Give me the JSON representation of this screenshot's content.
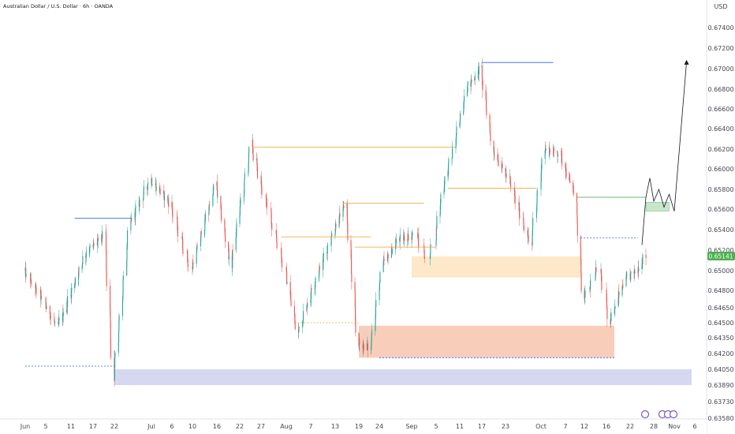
{
  "header": {
    "title": "Australian Dollar / U.S. Dollar · 6h · OANDA",
    "currency": "USD"
  },
  "chart_data": {
    "type": "candlestick",
    "symbol": "AUD/USD",
    "timeframe": "6h",
    "broker": "OANDA",
    "y_axis": {
      "ticks": [
        "0.67400",
        "0.67200",
        "0.67000",
        "0.66800",
        "0.66600",
        "0.66400",
        "0.66200",
        "0.66000",
        "0.65800",
        "0.65600",
        "0.65400",
        "0.65200",
        "0.65000",
        "0.64800",
        "0.64650",
        "0.64500",
        "0.64350",
        "0.64200",
        "0.64050",
        "0.63890",
        "0.63730",
        "0.63580"
      ],
      "last_price": "0.65141"
    },
    "x_axis": {
      "ticks": [
        "Jun",
        "5",
        "11",
        "17",
        "22",
        "Jul",
        "6",
        "10",
        "16",
        "22",
        "27",
        "Aug",
        "7",
        "13",
        "19",
        "24",
        "Sep",
        "5",
        "11",
        "17",
        "23",
        "Oct",
        "7",
        "12",
        "16",
        "22",
        "28",
        "Nov",
        "6"
      ]
    },
    "colors": {
      "up": "#26a69a",
      "down": "#ef5350",
      "supply_zone": "#fde7c4",
      "demand_zone": "#f7c9b3",
      "support_band": "#d1d4f1",
      "target_zone": "#c8e6c9",
      "level_blue": "#2962ff",
      "level_orange": "#f0a030",
      "level_green": "#43a047",
      "last_price_bg": "#4caf50"
    },
    "anchors": [
      {
        "date": "2024-06-01",
        "price": 0.65
      },
      {
        "date": "2024-06-08",
        "price": 0.6445
      },
      {
        "date": "2024-06-15",
        "price": 0.6515
      },
      {
        "date": "2024-06-20",
        "price": 0.6535
      },
      {
        "date": "2024-06-22",
        "price": 0.6395
      },
      {
        "date": "2024-06-26",
        "price": 0.6545
      },
      {
        "date": "2024-07-01",
        "price": 0.659
      },
      {
        "date": "2024-07-06",
        "price": 0.6565
      },
      {
        "date": "2024-07-10",
        "price": 0.65
      },
      {
        "date": "2024-07-16",
        "price": 0.6585
      },
      {
        "date": "2024-07-20",
        "price": 0.6505
      },
      {
        "date": "2024-07-25",
        "price": 0.6625
      },
      {
        "date": "2024-07-31",
        "price": 0.652
      },
      {
        "date": "2024-08-04",
        "price": 0.644
      },
      {
        "date": "2024-08-08",
        "price": 0.6485
      },
      {
        "date": "2024-08-13",
        "price": 0.654
      },
      {
        "date": "2024-08-16",
        "price": 0.6565
      },
      {
        "date": "2024-08-19",
        "price": 0.643
      },
      {
        "date": "2024-08-22",
        "price": 0.6425
      },
      {
        "date": "2024-08-25",
        "price": 0.6505
      },
      {
        "date": "2024-08-29",
        "price": 0.653
      },
      {
        "date": "2024-09-02",
        "price": 0.6535
      },
      {
        "date": "2024-09-04",
        "price": 0.651
      },
      {
        "date": "2024-09-07",
        "price": 0.658
      },
      {
        "date": "2024-09-10",
        "price": 0.6625
      },
      {
        "date": "2024-09-13",
        "price": 0.668
      },
      {
        "date": "2024-09-17",
        "price": 0.67
      },
      {
        "date": "2024-09-20",
        "price": 0.662
      },
      {
        "date": "2024-09-24",
        "price": 0.659
      },
      {
        "date": "2024-09-29",
        "price": 0.6525
      },
      {
        "date": "2024-10-02",
        "price": 0.662
      },
      {
        "date": "2024-10-06",
        "price": 0.6615
      },
      {
        "date": "2024-10-10",
        "price": 0.657
      },
      {
        "date": "2024-10-12",
        "price": 0.647
      },
      {
        "date": "2024-10-15",
        "price": 0.6505
      },
      {
        "date": "2024-10-17",
        "price": 0.645
      },
      {
        "date": "2024-10-21",
        "price": 0.649
      },
      {
        "date": "2024-10-24",
        "price": 0.65
      },
      {
        "date": "2024-10-26",
        "price": 0.6514
      }
    ],
    "zones": [
      {
        "name": "supply-zone",
        "from": "2024-09-01",
        "to": "2024-10-11",
        "top": 0.6514,
        "bottom": 0.6493
      },
      {
        "name": "demand-zone",
        "from": "2024-08-19",
        "to": "2024-10-18",
        "top": 0.6447,
        "bottom": 0.6416
      },
      {
        "name": "support-band",
        "from": "2024-06-22",
        "to": "2024-11-08",
        "top": 0.6405,
        "bottom": 0.6389
      },
      {
        "name": "target-zone",
        "from": "2024-10-26",
        "to": "2024-10-31",
        "top": 0.6567,
        "bottom": 0.6558
      }
    ],
    "levels": [
      {
        "name": "level-june-high",
        "color": "level_blue",
        "from": "2024-06-12",
        "to": "2024-06-26",
        "price": 0.6551
      },
      {
        "name": "level-july-high",
        "color": "level_orange",
        "from": "2024-07-25",
        "to": "2024-09-10",
        "price": 0.6622
      },
      {
        "name": "level-aug-high",
        "color": "level_orange",
        "from": "2024-08-15",
        "to": "2024-09-03",
        "price": 0.6566
      },
      {
        "name": "level-july-low",
        "color": "level_orange",
        "from": "2024-07-31",
        "to": "2024-08-22",
        "price": 0.6533
      },
      {
        "name": "level-mid-aug",
        "color": "level_orange",
        "from": "2024-08-18",
        "to": "2024-09-05",
        "price": 0.6523
      },
      {
        "name": "level-sep-high",
        "color": "level_blue",
        "from": "2024-09-17",
        "to": "2024-10-04",
        "price": 0.6706
      },
      {
        "name": "level-sep-low",
        "color": "level_orange",
        "from": "2024-09-08",
        "to": "2024-09-30",
        "price": 0.6581
      },
      {
        "name": "level-oct-res",
        "color": "level_green",
        "from": "2024-10-10",
        "to": "2024-10-26",
        "price": 0.6572
      },
      {
        "name": "level-oct-dashed",
        "color": "level_blue",
        "from": "2024-10-11",
        "to": "2024-10-24",
        "price": 0.6532,
        "dashed": true
      },
      {
        "name": "level-june-low",
        "color": "level_blue",
        "from": "2024-06-01",
        "to": "2024-06-22",
        "price": 0.6408,
        "dashed": true
      },
      {
        "name": "level-aug-low",
        "color": "level_orange",
        "from": "2024-08-03",
        "to": "2024-08-19",
        "price": 0.645,
        "dashed": true
      },
      {
        "name": "level-sep-low-dashed",
        "color": "level_blue",
        "from": "2024-08-24",
        "to": "2024-10-18",
        "price": 0.6416,
        "dashed": true
      }
    ],
    "projection": [
      {
        "date": "2024-10-25",
        "price": 0.6525
      },
      {
        "date": "2024-10-26",
        "price": 0.6572
      },
      {
        "date": "2024-10-27",
        "price": 0.6591
      },
      {
        "date": "2024-10-28",
        "price": 0.6568
      },
      {
        "date": "2024-10-29",
        "price": 0.658
      },
      {
        "date": "2024-10-30",
        "price": 0.6562
      },
      {
        "date": "2024-10-31",
        "price": 0.6575
      },
      {
        "date": "2024-11-01",
        "price": 0.6558
      },
      {
        "date": "2024-11-04",
        "price": 0.6707
      }
    ]
  }
}
